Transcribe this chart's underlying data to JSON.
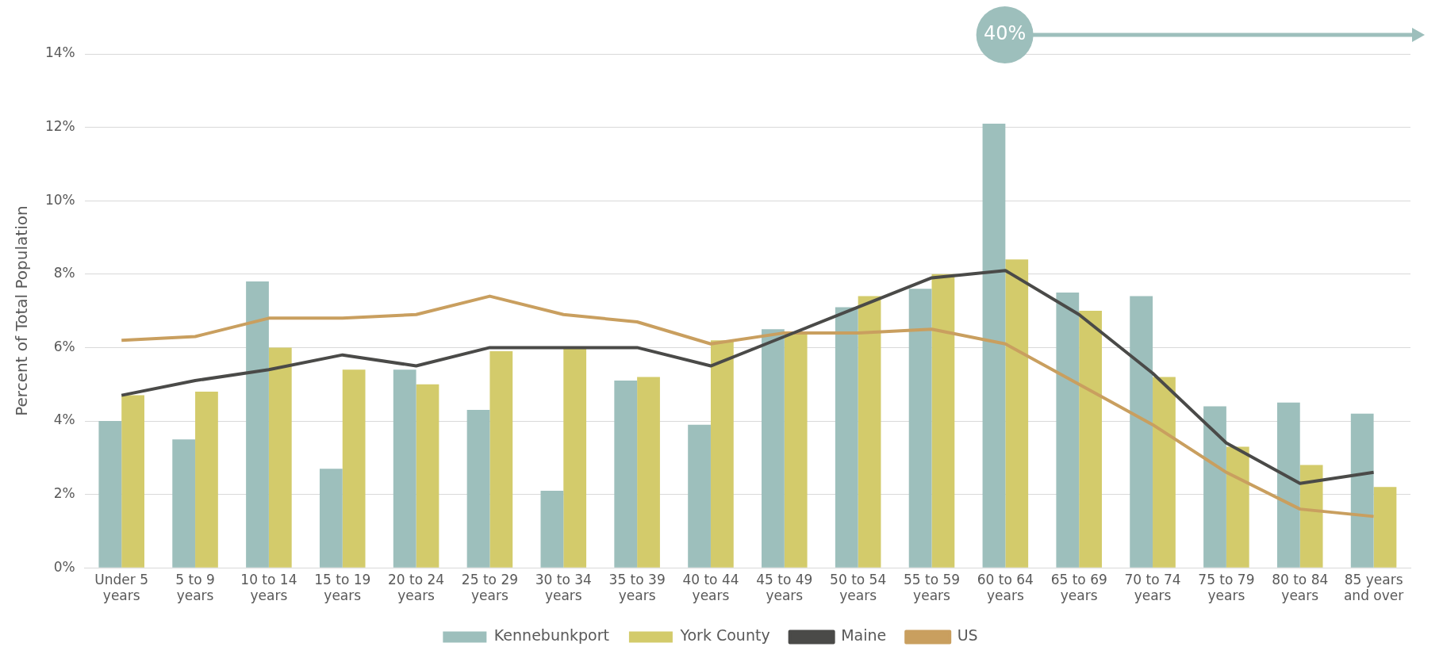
{
  "chart_data": {
    "type": "bar",
    "ylabel": "Percent of Total Population",
    "categories": [
      "Under 5 years",
      "5 to 9 years",
      "10 to 14 years",
      "15 to 19 years",
      "20 to 24 years",
      "25 to 29 years",
      "30 to 34 years",
      "35 to 39 years",
      "40 to 44 years",
      "45 to 49 years",
      "50 to 54 years",
      "55 to 59 years",
      "60 to 64 years",
      "65 to 69 years",
      "70 to 74 years",
      "75 to 79 years",
      "80 to 84 years",
      "85 years and over"
    ],
    "series": [
      {
        "name": "Kennebunkport",
        "color": "#9dbfbc",
        "values": [
          4.0,
          3.5,
          7.8,
          2.7,
          5.4,
          4.3,
          2.1,
          5.1,
          3.9,
          6.5,
          7.1,
          7.6,
          12.1,
          7.5,
          7.4,
          4.4,
          4.5,
          4.2
        ]
      },
      {
        "name": "York County",
        "color": "#d3cb6b",
        "values": [
          4.7,
          4.8,
          6.0,
          5.4,
          5.0,
          5.9,
          6.0,
          5.2,
          6.2,
          6.4,
          7.4,
          8.0,
          8.4,
          7.0,
          5.2,
          3.3,
          2.8,
          2.2
        ]
      },
      {
        "name": "Maine",
        "type": "line",
        "color": "#4a4a48",
        "values": [
          4.7,
          5.1,
          5.4,
          5.8,
          5.5,
          6.0,
          6.0,
          6.0,
          5.5,
          6.3,
          7.1,
          7.9,
          8.1,
          6.9,
          5.3,
          3.4,
          2.3,
          2.6
        ]
      },
      {
        "name": "US",
        "type": "line",
        "color": "#c99f5f",
        "values": [
          6.2,
          6.3,
          6.8,
          6.8,
          6.9,
          7.4,
          6.9,
          6.7,
          6.1,
          6.4,
          6.4,
          6.5,
          6.1,
          5.0,
          3.9,
          2.6,
          1.6,
          1.4
        ]
      }
    ],
    "ylim": [
      0,
      14
    ],
    "yticks": [
      {
        "value": 0,
        "label": "0%"
      },
      {
        "value": 2,
        "label": "2%"
      },
      {
        "value": 4,
        "label": "4%"
      },
      {
        "value": 6,
        "label": "6%"
      },
      {
        "value": 8,
        "label": "8%"
      },
      {
        "value": 10,
        "label": "10%"
      },
      {
        "value": 12,
        "label": "12%"
      },
      {
        "value": 14,
        "label": "14%"
      }
    ],
    "grid": "y",
    "legend": "bottom",
    "marker": "none",
    "line_style": "solid",
    "annotations": [
      "40%"
    ]
  }
}
